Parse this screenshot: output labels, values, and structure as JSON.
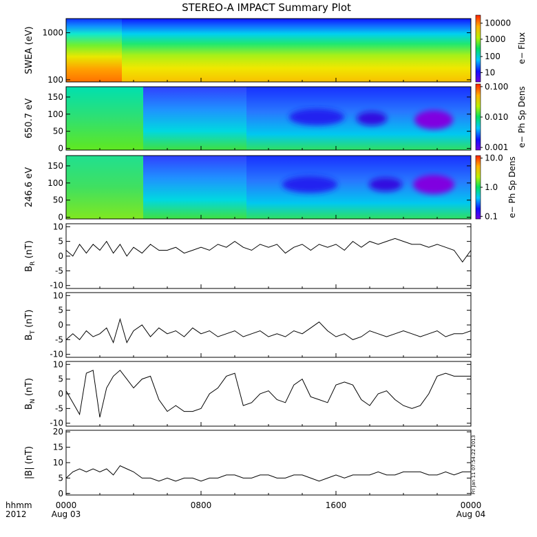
{
  "title": "STEREO-A IMPACT Summary Plot",
  "footer": {
    "row_label_1": "hhmm",
    "row_label_2": "2012",
    "time_ticks": [
      "0000",
      "0800",
      "1600",
      "0000"
    ],
    "date_labels": [
      "Aug 03",
      "Aug 04"
    ],
    "side_stamp": "Fri Jan 11 07:54:22 2013"
  },
  "colorbars": [
    {
      "label": "e− Flux",
      "ticks": [
        "10000",
        "1000",
        "100",
        "10"
      ]
    },
    {
      "label": "e− Ph Sp Dens",
      "ticks": [
        "0.100",
        "0.010",
        "0.001"
      ]
    },
    {
      "label": "e− Ph Sp Dens",
      "ticks": [
        "10.0",
        "1.0",
        "0.1"
      ]
    }
  ],
  "colors": {
    "line": "#000000",
    "axis": "#000000"
  },
  "chart_data": [
    {
      "type": "heatmap",
      "ylabel": "SWEA (eV)",
      "yscale": "log",
      "yticks": [
        "1000",
        "100"
      ],
      "ylim": [
        90,
        2000
      ],
      "cscale": "log",
      "clim": [
        3,
        30000
      ]
    },
    {
      "type": "heatmap",
      "ylabel": "650.7 eV",
      "yticks": [
        "150",
        "100",
        "50",
        "0"
      ],
      "ylim": [
        -5,
        180
      ],
      "cscale": "log",
      "clim": [
        0.001,
        0.1
      ]
    },
    {
      "type": "heatmap",
      "ylabel": "246.6 eV",
      "yticks": [
        "150",
        "100",
        "50",
        "0"
      ],
      "ylim": [
        -5,
        180
      ],
      "cscale": "log",
      "clim": [
        0.1,
        10
      ]
    },
    {
      "type": "line",
      "ylabel": "B_R (nT)",
      "ylabel_main": "B",
      "ylabel_sub": "R",
      "ylabel_unit": " (nT)",
      "ylim": [
        -11,
        11
      ],
      "yticks": [
        "10",
        "5",
        "0",
        "-5",
        "-10"
      ],
      "x_hours": [
        0,
        0.4,
        0.8,
        1.2,
        1.6,
        2,
        2.4,
        2.8,
        3.2,
        3.6,
        4,
        4.5,
        5,
        5.5,
        6,
        6.5,
        7,
        7.5,
        8,
        8.5,
        9,
        9.5,
        10,
        10.5,
        11,
        11.5,
        12,
        12.5,
        13,
        13.5,
        14,
        14.5,
        15,
        15.5,
        16,
        16.5,
        17,
        17.5,
        18,
        18.5,
        19,
        19.5,
        20,
        20.5,
        21,
        21.5,
        22,
        22.5,
        23,
        23.5,
        24
      ],
      "y": [
        2,
        0,
        4,
        1,
        4,
        2,
        5,
        1,
        4,
        0,
        3,
        1,
        4,
        2,
        2,
        3,
        1,
        2,
        3,
        2,
        4,
        3,
        5,
        3,
        2,
        4,
        3,
        4,
        1,
        3,
        4,
        2,
        4,
        3,
        4,
        2,
        5,
        3,
        5,
        4,
        5,
        6,
        5,
        4,
        4,
        3,
        4,
        3,
        2,
        -2,
        2
      ]
    },
    {
      "type": "line",
      "ylabel": "B_T (nT)",
      "ylabel_main": "B",
      "ylabel_sub": "T",
      "ylabel_unit": " (nT)",
      "ylim": [
        -11,
        11
      ],
      "yticks": [
        "10",
        "5",
        "0",
        "-5",
        "-10"
      ],
      "x_hours": [
        0,
        0.4,
        0.8,
        1.2,
        1.6,
        2,
        2.4,
        2.8,
        3.2,
        3.6,
        4,
        4.5,
        5,
        5.5,
        6,
        6.5,
        7,
        7.5,
        8,
        8.5,
        9,
        9.5,
        10,
        10.5,
        11,
        11.5,
        12,
        12.5,
        13,
        13.5,
        14,
        14.5,
        15,
        15.5,
        16,
        16.5,
        17,
        17.5,
        18,
        18.5,
        19,
        19.5,
        20,
        20.5,
        21,
        21.5,
        22,
        22.5,
        23,
        23.5,
        24
      ],
      "y": [
        -5,
        -3,
        -5,
        -2,
        -4,
        -3,
        -1,
        -6,
        2,
        -6,
        -2,
        0,
        -4,
        -1,
        -3,
        -2,
        -4,
        -1,
        -3,
        -2,
        -4,
        -3,
        -2,
        -4,
        -3,
        -2,
        -4,
        -3,
        -4,
        -2,
        -3,
        -1,
        1,
        -2,
        -4,
        -3,
        -5,
        -4,
        -2,
        -3,
        -4,
        -3,
        -2,
        -3,
        -4,
        -3,
        -2,
        -4,
        -3,
        -3,
        -2
      ]
    },
    {
      "type": "line",
      "ylabel": "B_N (nT)",
      "ylabel_main": "B",
      "ylabel_sub": "N",
      "ylabel_unit": " (nT)",
      "ylim": [
        -11,
        11
      ],
      "yticks": [
        "10",
        "5",
        "0",
        "-5",
        "-10"
      ],
      "x_hours": [
        0,
        0.4,
        0.8,
        1.2,
        1.6,
        2,
        2.4,
        2.8,
        3.2,
        3.6,
        4,
        4.5,
        5,
        5.5,
        6,
        6.5,
        7,
        7.5,
        8,
        8.5,
        9,
        9.5,
        10,
        10.5,
        11,
        11.5,
        12,
        12.5,
        13,
        13.5,
        14,
        14.5,
        15,
        15.5,
        16,
        16.5,
        17,
        17.5,
        18,
        18.5,
        19,
        19.5,
        20,
        20.5,
        21,
        21.5,
        22,
        22.5,
        23,
        23.5,
        24
      ],
      "y": [
        1,
        -3,
        -7,
        7,
        8,
        -8,
        2,
        6,
        8,
        5,
        2,
        5,
        6,
        -2,
        -6,
        -4,
        -6,
        -6,
        -5,
        0,
        2,
        6,
        7,
        -4,
        -3,
        0,
        1,
        -2,
        -3,
        3,
        5,
        -1,
        -2,
        -3,
        3,
        4,
        3,
        -2,
        -4,
        0,
        1,
        -2,
        -4,
        -5,
        -4,
        0,
        6,
        7,
        6,
        6,
        6
      ]
    },
    {
      "type": "line",
      "ylabel": "|B| (nT)",
      "ylabel_main": "|B|",
      "ylabel_sub": "",
      "ylabel_unit": " (nT)",
      "ylim": [
        -0.5,
        20.5
      ],
      "yticks": [
        "20",
        "15",
        "10",
        "5",
        "0"
      ],
      "x_hours": [
        0,
        0.4,
        0.8,
        1.2,
        1.6,
        2,
        2.4,
        2.8,
        3.2,
        3.6,
        4,
        4.5,
        5,
        5.5,
        6,
        6.5,
        7,
        7.5,
        8,
        8.5,
        9,
        9.5,
        10,
        10.5,
        11,
        11.5,
        12,
        12.5,
        13,
        13.5,
        14,
        14.5,
        15,
        15.5,
        16,
        16.5,
        17,
        17.5,
        18,
        18.5,
        19,
        19.5,
        20,
        20.5,
        21,
        21.5,
        22,
        22.5,
        23,
        23.5,
        24
      ],
      "y": [
        5,
        7,
        8,
        7,
        8,
        7,
        8,
        6,
        9,
        8,
        7,
        5,
        5,
        4,
        5,
        4,
        5,
        5,
        4,
        5,
        5,
        6,
        6,
        5,
        5,
        6,
        6,
        5,
        5,
        6,
        6,
        5,
        4,
        5,
        6,
        5,
        6,
        6,
        6,
        7,
        6,
        6,
        7,
        7,
        7,
        6,
        6,
        7,
        6,
        7,
        7
      ]
    }
  ]
}
